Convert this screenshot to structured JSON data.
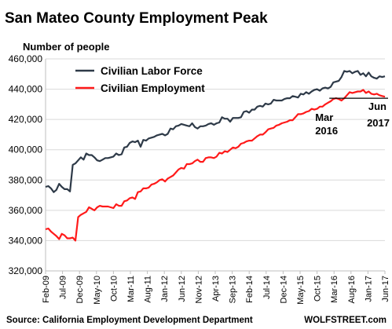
{
  "chart_data": {
    "type": "line",
    "title": "San Mateo County Employment Peak",
    "ylabel": "Number of people",
    "ylim": [
      320000,
      460000
    ],
    "y_ticks": [
      "460,000",
      "440,000",
      "420,000",
      "400,000",
      "380,000",
      "360,000",
      "340,000",
      "320,000"
    ],
    "y_tick_values": [
      460000,
      440000,
      420000,
      400000,
      380000,
      360000,
      340000,
      320000
    ],
    "x_start": "Feb-09",
    "x_end": "Jun-17",
    "x_ticks": [
      "Feb-09",
      "Jul-09",
      "Dec-09",
      "May-10",
      "Oct-10",
      "Mar-11",
      "Aug-11",
      "Jan-12",
      "Jun-12",
      "Nov-12",
      "Apr-13",
      "Sep-13",
      "Feb-14",
      "Jul-14",
      "Dec-14",
      "May-15",
      "Oct-15",
      "Mar-16",
      "Aug-16",
      "Jan-17",
      "Jun-17"
    ],
    "grid": true,
    "legend_position": "top-left",
    "series": [
      {
        "name": "Civilian Labor Force",
        "color": "#2e3a48",
        "values": [
          375500,
          376000,
          374500,
          372000,
          373500,
          377500,
          375500,
          374000,
          374000,
          372500,
          390000,
          391000,
          393000,
          395000,
          393500,
          397500,
          396500,
          396500,
          395000,
          393000,
          392500,
          393500,
          394500,
          394500,
          395000,
          395500,
          397500,
          396500,
          397000,
          401500,
          402000,
          404500,
          405500,
          405000,
          406000,
          402000,
          406500,
          406000,
          407500,
          408000,
          408500,
          409500,
          410000,
          410500,
          409500,
          410500,
          414000,
          413500,
          415500,
          416000,
          417000,
          416500,
          416000,
          415500,
          417500,
          415000,
          414000,
          415500,
          415500,
          416000,
          417000,
          417500,
          416500,
          417500,
          418000,
          421500,
          420500,
          420500,
          418500,
          421000,
          421000,
          421000,
          421500,
          425000,
          425500,
          424500,
          426500,
          426500,
          428500,
          429000,
          428500,
          430500,
          430000,
          430500,
          433000,
          432500,
          432500,
          432500,
          433500,
          434000,
          434000,
          435500,
          435000,
          434500,
          437000,
          436500,
          438000,
          437000,
          438500,
          439500,
          440000,
          439000,
          440500,
          441000,
          440500,
          441500,
          444500,
          445000,
          445500,
          448000,
          452000,
          451500,
          452000,
          450500,
          451500,
          452000,
          449500,
          450500,
          448500,
          451000,
          448500,
          447500,
          447000,
          448500,
          448000,
          448500
        ],
        "note": "Series sampled roughly monthly from Feb-09 to Jun-17"
      },
      {
        "name": "Civilian Employment",
        "color": "#ff1a1a",
        "values": [
          347500,
          348000,
          346000,
          344500,
          343000,
          341000,
          344500,
          343500,
          341500,
          341500,
          342000,
          340000,
          355500,
          357000,
          358000,
          359000,
          362000,
          361000,
          360000,
          362000,
          363000,
          362500,
          362500,
          362500,
          362000,
          361500,
          364000,
          363000,
          363000,
          366000,
          366500,
          368000,
          368500,
          367500,
          372000,
          372500,
          374500,
          374500,
          375000,
          377000,
          377500,
          378500,
          380000,
          380500,
          379000,
          381000,
          382000,
          383000,
          385000,
          387000,
          388000,
          387500,
          390500,
          390500,
          391000,
          392500,
          393500,
          392000,
          392000,
          394500,
          395000,
          395000,
          394500,
          395500,
          398000,
          397500,
          399000,
          398500,
          400000,
          401500,
          401000,
          402000,
          404000,
          404500,
          405500,
          406000,
          406000,
          407500,
          409000,
          410000,
          410000,
          411500,
          413500,
          414000,
          414500,
          416000,
          416500,
          417500,
          418000,
          418500,
          419500,
          419500,
          421500,
          423500,
          423500,
          424000,
          425000,
          425500,
          427000,
          426500,
          427000,
          428500,
          428500,
          430000,
          431000,
          432000,
          433500,
          434000,
          433500,
          432500,
          434000,
          436000,
          438000,
          437500,
          438000,
          438500,
          438500,
          439500,
          437500,
          438500,
          437000,
          436500,
          437000,
          436000,
          435500,
          435000
        ]
      }
    ],
    "annotations": [
      {
        "line1": "Mar",
        "line2": "2016",
        "x_value": "Mar-16",
        "y": 433500
      },
      {
        "line1": "Jun",
        "line2": "2017",
        "x_value": "Jun-17",
        "y": 435000
      }
    ],
    "reference_line": {
      "y": 434000,
      "from": "Mar-16",
      "to": "Jun-17"
    },
    "source": "Source: California Employment Development Department",
    "credit": "WOLFSTREET.com"
  }
}
